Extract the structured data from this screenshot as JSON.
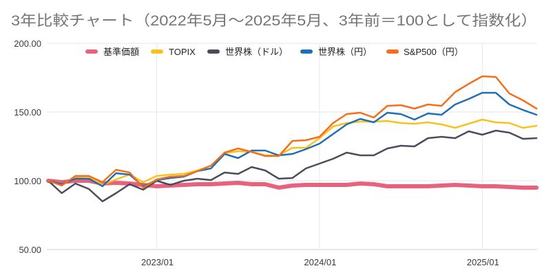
{
  "chart_data": {
    "type": "line",
    "title": "3年比較チャート（2022年5月〜2025年5月、3年前＝100として指数化）",
    "x": [
      "2022/05",
      "2022/06",
      "2022/07",
      "2022/08",
      "2022/09",
      "2022/10",
      "2022/11",
      "2022/12",
      "2023/01",
      "2023/02",
      "2023/03",
      "2023/04",
      "2023/05",
      "2023/06",
      "2023/07",
      "2023/08",
      "2023/09",
      "2023/10",
      "2023/11",
      "2023/12",
      "2024/01",
      "2024/02",
      "2024/03",
      "2024/04",
      "2024/05",
      "2024/06",
      "2024/07",
      "2024/08",
      "2024/09",
      "2024/10",
      "2024/11",
      "2024/12",
      "2025/01",
      "2025/02",
      "2025/03",
      "2025/04",
      "2025/05"
    ],
    "x_ticks": [
      "2023/01",
      "2024/01",
      "2025/01"
    ],
    "y_ticks": [
      {
        "value": 50,
        "label": "50.00"
      },
      {
        "value": 100,
        "label": "100.00"
      },
      {
        "value": 150,
        "label": "150.00"
      },
      {
        "value": 200,
        "label": "200.00"
      }
    ],
    "ylim": [
      50,
      200
    ],
    "grid": true,
    "legend": "top",
    "series": [
      {
        "name": "基準価額",
        "color": "#e8627e",
        "values": [
          100,
          99,
          100,
          100,
          98,
          98.5,
          98,
          97,
          96,
          96.5,
          97,
          97.5,
          97.5,
          98,
          98.5,
          97.5,
          97.5,
          95,
          96.5,
          97,
          97,
          97,
          97,
          98,
          97.5,
          96,
          96,
          96,
          96,
          96.5,
          97,
          96.5,
          96,
          96,
          95.5,
          95,
          95
        ]
      },
      {
        "name": "TOPIX",
        "color": "#f9c21b",
        "values": [
          100,
          97,
          102.5,
          103,
          97,
          101,
          104.5,
          99,
          103.5,
          104.5,
          105,
          107.5,
          111,
          120,
          121.5,
          121,
          118.5,
          118.5,
          124,
          124,
          131,
          139.5,
          142,
          143,
          143,
          143.5,
          142,
          141.5,
          142.5,
          141,
          138.5,
          141.5,
          144.5,
          142.5,
          142,
          138.5,
          140
        ]
      },
      {
        "name": "世界株（ドル）",
        "color": "#4b4b5c",
        "values": [
          100,
          91,
          98,
          94,
          85,
          91,
          97.5,
          93.5,
          100,
          97,
          100,
          101.5,
          100.5,
          106,
          105,
          110,
          107.5,
          101.5,
          102,
          109,
          112.5,
          116,
          120.5,
          118.5,
          118.5,
          123.5,
          125.5,
          125,
          131,
          132,
          131,
          136,
          133.5,
          136.5,
          135,
          130.5,
          131
        ]
      },
      {
        "name": "世界株（円）",
        "color": "#1f6fb2",
        "values": [
          100,
          97.5,
          101.5,
          101.5,
          96,
          105.5,
          104.5,
          96,
          100.5,
          102,
          103,
          107,
          109,
          119.5,
          116.5,
          122,
          122,
          118.5,
          119.5,
          123,
          127,
          134,
          141,
          145,
          142.5,
          149.5,
          148.5,
          144.5,
          149,
          148,
          155.5,
          159.5,
          164,
          164,
          155.5,
          151.5,
          148
        ]
      },
      {
        "name": "S&P500（円）",
        "color": "#f46f1b",
        "values": [
          100,
          96.5,
          103.5,
          103.5,
          99,
          108,
          106,
          95,
          101,
          103,
          103.5,
          107,
          111,
          120.5,
          123.5,
          121,
          118,
          118,
          129,
          129.5,
          132,
          142,
          148.5,
          149.5,
          146,
          154.5,
          155,
          152.5,
          155.5,
          154.5,
          164.5,
          170.5,
          176,
          175.5,
          163.5,
          158.5,
          152.5
        ]
      }
    ]
  }
}
